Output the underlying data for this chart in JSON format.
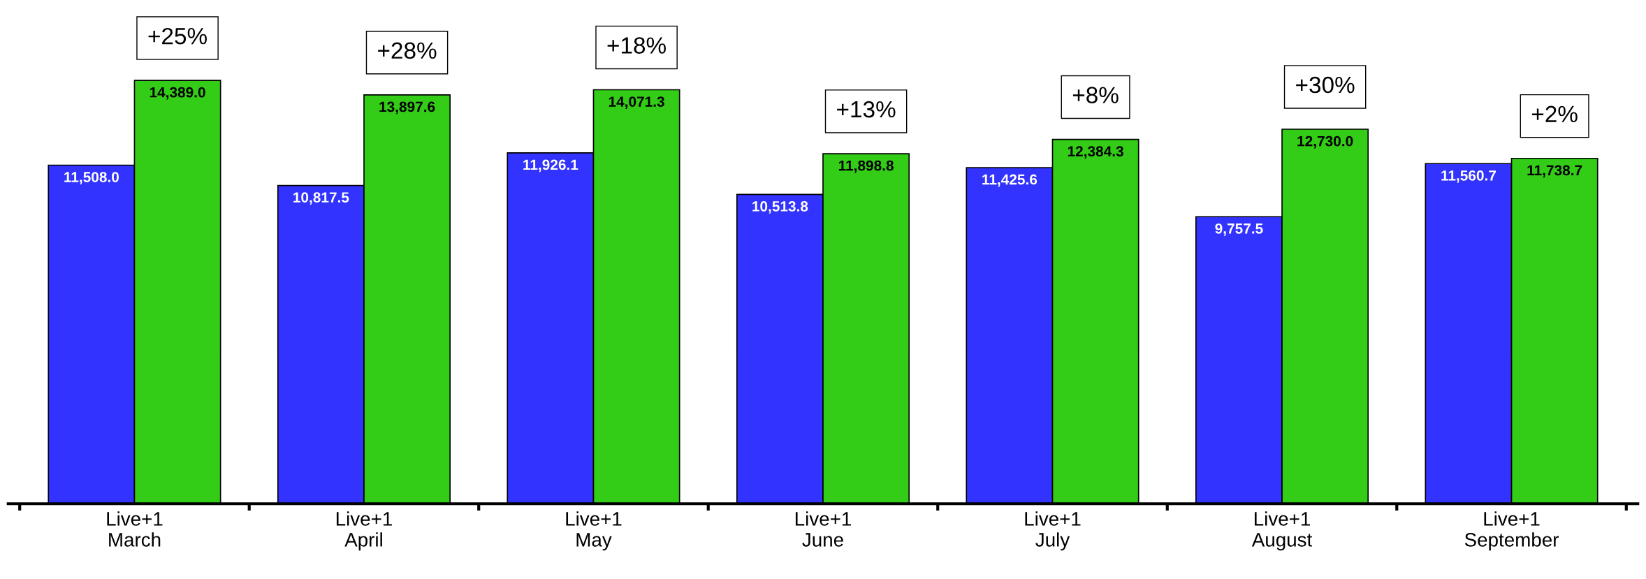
{
  "chart_data": {
    "type": "bar",
    "categories": [
      "Live+1\nMarch",
      "Live+1\nApril",
      "Live+1\nMay",
      "Live+1\nJune",
      "Live+1\nJuly",
      "Live+1\nAugust",
      "Live+1\nSeptember"
    ],
    "series": [
      {
        "color": "#3333ff",
        "values": [
          11508.0,
          10817.5,
          11926.1,
          10513.8,
          11425.6,
          9757.5,
          11560.7
        ],
        "value_labels": [
          "11,508.0",
          "10,817.5",
          "11,926.1",
          "10,513.8",
          "11,425.6",
          "9,757.5",
          "11,560.7"
        ]
      },
      {
        "color": "#33cc17",
        "values": [
          14389.0,
          13897.6,
          14071.3,
          11898.8,
          12384.3,
          12730.0,
          11738.7
        ],
        "value_labels": [
          "14,389.0",
          "13,897.6",
          "14,071.3",
          "11,898.8",
          "12,384.3",
          "12,730.0",
          "11,738.7"
        ]
      }
    ],
    "annotations": [
      "+25%",
      "+28%",
      "+18%",
      "+13%",
      "+8%",
      "+30%",
      "+2%"
    ],
    "grid": false,
    "legend": false
  }
}
